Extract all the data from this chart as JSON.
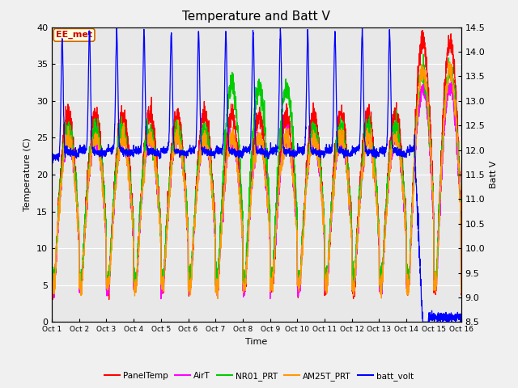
{
  "title": "Temperature and Batt V",
  "xlabel": "Time",
  "ylabel_left": "Temperature (C)",
  "ylabel_right": "Batt V",
  "annotation": "EE_met",
  "xlim": [
    0,
    15
  ],
  "ylim_left": [
    0,
    40
  ],
  "ylim_right": [
    8.5,
    14.5
  ],
  "xtick_labels": [
    "Oct 1",
    "Oct 2",
    "Oct 3",
    "Oct 4",
    "Oct 5",
    "Oct 6",
    "Oct 7",
    "Oct 8",
    "Oct 9",
    "Oct 10",
    "Oct 11",
    "Oct 12",
    "Oct 13",
    "Oct 14",
    "Oct 15",
    "Oct 16"
  ],
  "ytick_left": [
    0,
    5,
    10,
    15,
    20,
    25,
    30,
    35,
    40
  ],
  "ytick_right": [
    8.5,
    9.0,
    9.5,
    10.0,
    10.5,
    11.0,
    11.5,
    12.0,
    12.5,
    13.0,
    13.5,
    14.0,
    14.5
  ],
  "series_colors": {
    "PanelTemp": "#ff0000",
    "AirT": "#ff00ff",
    "NR01_PRT": "#00cc00",
    "AM25T_PRT": "#ff9900",
    "batt_volt": "#0000ff"
  },
  "legend_labels": [
    "PanelTemp",
    "AirT",
    "NR01_PRT",
    "AM25T_PRT",
    "batt_volt"
  ],
  "bg_color": "#e8e8e8",
  "grid_color": "#ffffff",
  "fig_facecolor": "#f0f0f0",
  "title_fontsize": 11,
  "label_fontsize": 8,
  "tick_fontsize": 8,
  "annotation_facecolor": "lightyellow",
  "annotation_edgecolor": "#cc6600",
  "annotation_textcolor": "#cc0000"
}
